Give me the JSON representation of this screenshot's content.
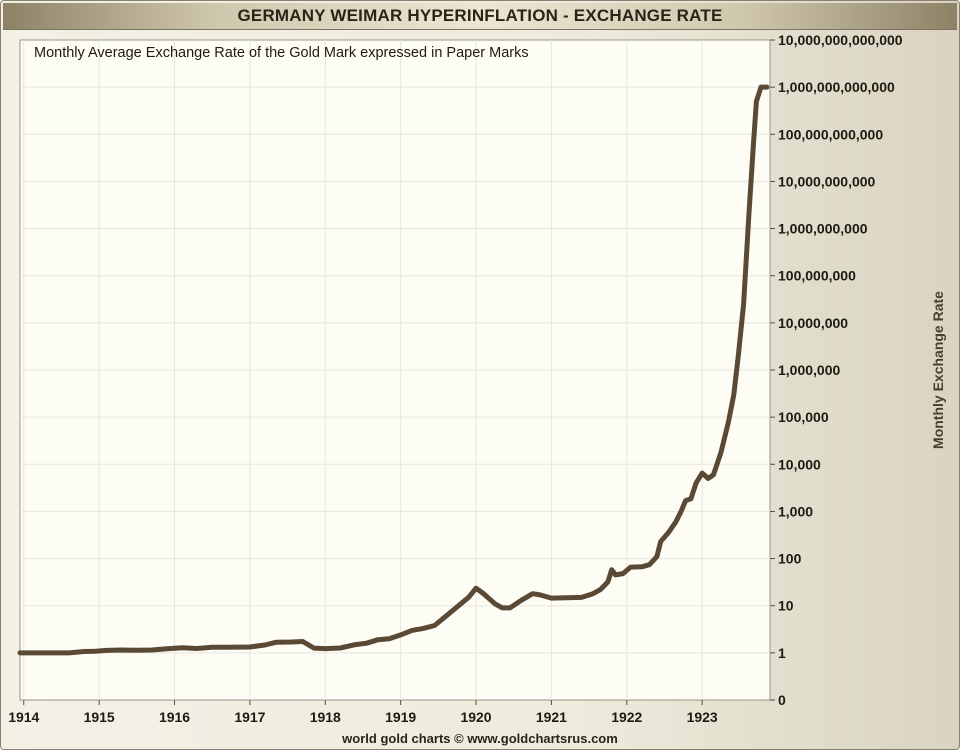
{
  "header": {
    "title": "GERMANY WEIMAR HYPERINFLATION - EXCHANGE RATE"
  },
  "footer": {
    "credit": "world gold charts © www.goldchartsrus.com"
  },
  "colors": {
    "line": "#5a4a35",
    "plot_background": "#fdfdf6",
    "grid": "#e6e6dc",
    "text": "#2a2418"
  },
  "chart_data": {
    "type": "line",
    "title": "",
    "subtitle": "Monthly Average Exchange Rate of the Gold Mark expressed in Paper Marks",
    "xlabel": "",
    "ylabel": "Monthly Exchange Rate",
    "y_scale": "log",
    "xlim": [
      1913.95,
      1923.9
    ],
    "ylim_exponents": [
      -1,
      13
    ],
    "grid": true,
    "x_tick_values": [
      1914,
      1915,
      1916,
      1917,
      1918,
      1919,
      1920,
      1921,
      1922,
      1923
    ],
    "x_tick_labels": [
      "1914",
      "1915",
      "1916",
      "1917",
      "1918",
      "1919",
      "1920",
      "1921",
      "1922",
      "1923"
    ],
    "y_tick_exponents": [
      -1,
      0,
      1,
      2,
      3,
      4,
      5,
      6,
      7,
      8,
      9,
      10,
      11,
      12,
      13
    ],
    "y_tick_labels": [
      "0",
      "1",
      "10",
      "100",
      "1,000",
      "10,000",
      "100,000",
      "1,000,000",
      "10,000,000",
      "100,000,000",
      "1,000,000,000",
      "10,000,000,000",
      "100,000,000,000",
      "1,000,000,000,000",
      "10,000,000,000,000"
    ],
    "series": [
      {
        "x": [
          1913.95,
          1914.6,
          1914.8,
          1914.95,
          1915.1,
          1915.3,
          1915.5,
          1915.7,
          1915.9,
          1916.1,
          1916.3,
          1916.5,
          1916.7,
          1917.0,
          1917.2,
          1917.35,
          1917.55,
          1917.7,
          1917.85,
          1918.0,
          1918.2,
          1918.4,
          1918.55,
          1918.7,
          1918.85,
          1919.0,
          1919.15,
          1919.3,
          1919.45,
          1919.6,
          1919.75,
          1919.9,
          1920.0,
          1920.1,
          1920.25,
          1920.35,
          1920.45,
          1920.6,
          1920.75,
          1920.85,
          1921.0,
          1921.2,
          1921.4,
          1921.55,
          1921.65,
          1921.75,
          1921.8,
          1921.85,
          1921.95,
          1922.05,
          1922.2,
          1922.3,
          1922.4,
          1922.45,
          1922.55,
          1922.65,
          1922.72,
          1922.78,
          1922.85,
          1922.92,
          1923.0,
          1923.08,
          1923.15,
          1923.25,
          1923.35,
          1923.42,
          1923.48,
          1923.55,
          1923.62,
          1923.68,
          1923.72,
          1923.78,
          1923.86
        ],
        "y": [
          1.0,
          1.0,
          1.07,
          1.08,
          1.13,
          1.15,
          1.14,
          1.15,
          1.22,
          1.28,
          1.24,
          1.31,
          1.31,
          1.33,
          1.47,
          1.68,
          1.7,
          1.74,
          1.26,
          1.23,
          1.27,
          1.5,
          1.6,
          1.9,
          2.0,
          2.4,
          3.0,
          3.3,
          3.8,
          6.0,
          9.5,
          15.0,
          23.5,
          18.0,
          11.0,
          9.0,
          9.0,
          13.0,
          18.0,
          17.0,
          14.5,
          14.8,
          15.0,
          18.0,
          22.0,
          32.0,
          58.0,
          45.0,
          48.0,
          66.0,
          67.0,
          74.0,
          110.0,
          230.0,
          350.0,
          600.0,
          1000.0,
          1700.0,
          1850.0,
          4000.0,
          6500.0,
          5000.0,
          6000.0,
          18000.0,
          80000.0,
          300000.0,
          2000000.0,
          25000000.0,
          2000000000.0,
          60000000000.0,
          500000000000.0,
          1000000000000.0,
          1000000000000.0
        ]
      }
    ]
  }
}
